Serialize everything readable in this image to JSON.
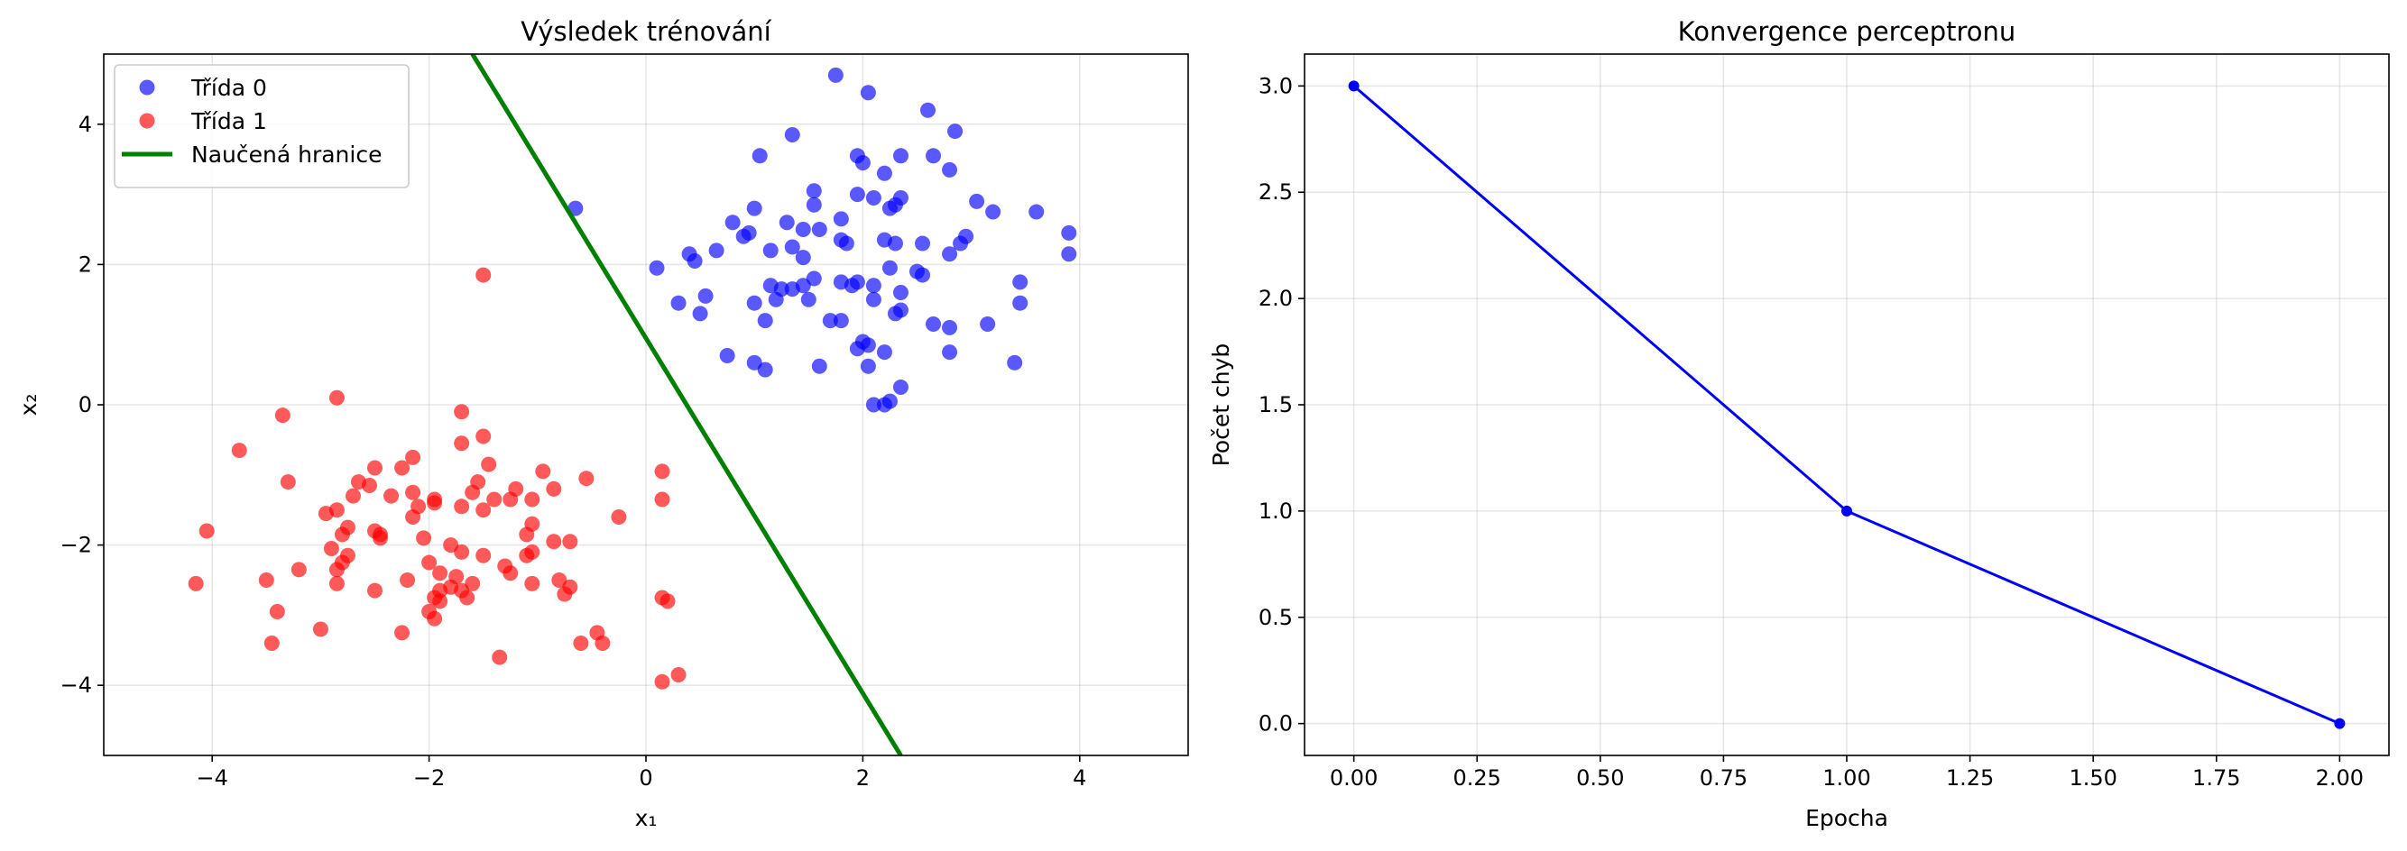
{
  "chart_data": [
    {
      "type": "scatter",
      "title": "Výsledek trénování",
      "xlabel": "x₁",
      "ylabel": "x₂",
      "xlim": [
        -5,
        5
      ],
      "ylim": [
        -5,
        5
      ],
      "xticks": [
        -4,
        -2,
        0,
        2,
        4
      ],
      "yticks": [
        -4,
        -2,
        0,
        2,
        4
      ],
      "xtick_labels": [
        "−4",
        "−2",
        "0",
        "2",
        "4"
      ],
      "ytick_labels": [
        "−4",
        "−2",
        "0",
        "2",
        "4"
      ],
      "grid": true,
      "legend_position": "top-left",
      "series": [
        {
          "name": "Třída 0",
          "kind": "scatter",
          "color": "#0000ff",
          "points": [
            [
              1.75,
              4.7
            ],
            [
              2.05,
              4.45
            ],
            [
              2.6,
              4.2
            ],
            [
              2.85,
              3.9
            ],
            [
              1.35,
              3.85
            ],
            [
              1.05,
              3.55
            ],
            [
              1.95,
              3.55
            ],
            [
              2.0,
              3.45
            ],
            [
              2.35,
              3.55
            ],
            [
              2.65,
              3.55
            ],
            [
              2.8,
              3.35
            ],
            [
              2.2,
              3.3
            ],
            [
              1.55,
              3.05
            ],
            [
              1.95,
              3.0
            ],
            [
              2.1,
              2.95
            ],
            [
              2.35,
              2.95
            ],
            [
              3.05,
              2.9
            ],
            [
              1.55,
              2.85
            ],
            [
              2.3,
              2.85
            ],
            [
              2.25,
              2.8
            ],
            [
              3.2,
              2.75
            ],
            [
              3.6,
              2.75
            ],
            [
              1.0,
              2.8
            ],
            [
              1.8,
              2.65
            ],
            [
              0.8,
              2.6
            ],
            [
              1.3,
              2.6
            ],
            [
              1.45,
              2.5
            ],
            [
              1.6,
              2.5
            ],
            [
              0.95,
              2.45
            ],
            [
              0.9,
              2.4
            ],
            [
              2.95,
              2.4
            ],
            [
              3.9,
              2.45
            ],
            [
              2.2,
              2.35
            ],
            [
              1.8,
              2.35
            ],
            [
              1.85,
              2.3
            ],
            [
              2.3,
              2.3
            ],
            [
              2.55,
              2.3
            ],
            [
              2.9,
              2.3
            ],
            [
              0.4,
              2.15
            ],
            [
              0.65,
              2.2
            ],
            [
              1.35,
              2.25
            ],
            [
              1.45,
              2.1
            ],
            [
              0.45,
              2.05
            ],
            [
              1.15,
              2.2
            ],
            [
              2.8,
              2.15
            ],
            [
              3.9,
              2.15
            ],
            [
              0.1,
              1.95
            ],
            [
              2.25,
              1.95
            ],
            [
              2.5,
              1.9
            ],
            [
              2.55,
              1.85
            ],
            [
              1.8,
              1.75
            ],
            [
              1.95,
              1.75
            ],
            [
              2.1,
              1.7
            ],
            [
              1.9,
              1.7
            ],
            [
              1.55,
              1.8
            ],
            [
              1.45,
              1.7
            ],
            [
              1.25,
              1.65
            ],
            [
              1.15,
              1.7
            ],
            [
              1.35,
              1.65
            ],
            [
              3.45,
              1.75
            ],
            [
              0.55,
              1.55
            ],
            [
              2.35,
              1.6
            ],
            [
              1.2,
              1.5
            ],
            [
              1.5,
              1.5
            ],
            [
              2.1,
              1.5
            ],
            [
              3.45,
              1.45
            ],
            [
              0.3,
              1.45
            ],
            [
              1.0,
              1.45
            ],
            [
              0.5,
              1.3
            ],
            [
              2.3,
              1.3
            ],
            [
              1.8,
              1.2
            ],
            [
              1.7,
              1.2
            ],
            [
              2.35,
              1.35
            ],
            [
              1.1,
              1.2
            ],
            [
              2.65,
              1.15
            ],
            [
              2.8,
              1.1
            ],
            [
              3.15,
              1.15
            ],
            [
              2.05,
              0.85
            ],
            [
              1.95,
              0.8
            ],
            [
              2.2,
              0.75
            ],
            [
              2.8,
              0.75
            ],
            [
              2.0,
              0.9
            ],
            [
              0.75,
              0.7
            ],
            [
              1.0,
              0.6
            ],
            [
              1.1,
              0.5
            ],
            [
              1.6,
              0.55
            ],
            [
              2.05,
              0.55
            ],
            [
              3.4,
              0.6
            ],
            [
              2.35,
              0.25
            ],
            [
              2.25,
              0.05
            ],
            [
              2.1,
              0.0
            ],
            [
              2.2,
              0.0
            ],
            [
              -0.65,
              2.8
            ]
          ]
        },
        {
          "name": "Třída 1",
          "kind": "scatter",
          "color": "#ff0000",
          "points": [
            [
              -1.5,
              1.85
            ],
            [
              -2.85,
              0.1
            ],
            [
              -3.35,
              -0.15
            ],
            [
              -1.7,
              -0.1
            ],
            [
              -1.5,
              -0.45
            ],
            [
              -3.75,
              -0.65
            ],
            [
              -1.7,
              -0.55
            ],
            [
              -2.15,
              -0.75
            ],
            [
              -2.25,
              -0.9
            ],
            [
              -1.45,
              -0.85
            ],
            [
              -2.5,
              -0.9
            ],
            [
              -0.95,
              -0.95
            ],
            [
              -0.55,
              -1.05
            ],
            [
              0.15,
              -0.95
            ],
            [
              -3.3,
              -1.1
            ],
            [
              -2.65,
              -1.1
            ],
            [
              -2.55,
              -1.15
            ],
            [
              -1.55,
              -1.1
            ],
            [
              -1.2,
              -1.2
            ],
            [
              -0.85,
              -1.2
            ],
            [
              -2.7,
              -1.3
            ],
            [
              -2.15,
              -1.25
            ],
            [
              -2.35,
              -1.3
            ],
            [
              -1.95,
              -1.35
            ],
            [
              -1.6,
              -1.25
            ],
            [
              -1.25,
              -1.35
            ],
            [
              -1.05,
              -1.35
            ],
            [
              0.15,
              -1.35
            ],
            [
              -1.4,
              -1.35
            ],
            [
              -2.1,
              -1.45
            ],
            [
              -1.95,
              -1.4
            ],
            [
              -1.7,
              -1.45
            ],
            [
              -1.5,
              -1.5
            ],
            [
              -2.95,
              -1.55
            ],
            [
              -2.85,
              -1.5
            ],
            [
              -2.15,
              -1.6
            ],
            [
              -0.25,
              -1.6
            ],
            [
              -1.05,
              -1.7
            ],
            [
              -2.75,
              -1.75
            ],
            [
              -2.5,
              -1.8
            ],
            [
              -2.45,
              -1.85
            ],
            [
              -2.8,
              -1.85
            ],
            [
              -1.1,
              -1.85
            ],
            [
              -2.45,
              -1.9
            ],
            [
              -2.05,
              -1.9
            ],
            [
              -1.8,
              -2.0
            ],
            [
              -0.85,
              -1.95
            ],
            [
              -0.7,
              -1.95
            ],
            [
              -4.05,
              -1.8
            ],
            [
              -2.9,
              -2.05
            ],
            [
              -2.75,
              -2.15
            ],
            [
              -1.7,
              -2.1
            ],
            [
              -1.1,
              -2.15
            ],
            [
              -1.05,
              -2.1
            ],
            [
              -1.5,
              -2.15
            ],
            [
              -2.8,
              -2.25
            ],
            [
              -2.0,
              -2.25
            ],
            [
              -1.3,
              -2.3
            ],
            [
              -2.85,
              -2.35
            ],
            [
              -3.2,
              -2.35
            ],
            [
              -1.9,
              -2.4
            ],
            [
              -2.2,
              -2.5
            ],
            [
              -1.25,
              -2.4
            ],
            [
              -1.75,
              -2.45
            ],
            [
              -1.6,
              -2.55
            ],
            [
              -1.05,
              -2.55
            ],
            [
              -0.8,
              -2.5
            ],
            [
              -3.5,
              -2.5
            ],
            [
              -4.15,
              -2.55
            ],
            [
              -2.85,
              -2.55
            ],
            [
              -1.8,
              -2.6
            ],
            [
              -1.7,
              -2.65
            ],
            [
              -1.9,
              -2.65
            ],
            [
              -2.5,
              -2.65
            ],
            [
              -0.7,
              -2.6
            ],
            [
              -0.75,
              -2.7
            ],
            [
              -1.95,
              -2.75
            ],
            [
              -1.65,
              -2.75
            ],
            [
              -1.9,
              -2.8
            ],
            [
              0.15,
              -2.75
            ],
            [
              0.2,
              -2.8
            ],
            [
              -2.0,
              -2.95
            ],
            [
              -3.4,
              -2.95
            ],
            [
              -1.95,
              -3.05
            ],
            [
              -3.0,
              -3.2
            ],
            [
              -2.25,
              -3.25
            ],
            [
              -0.45,
              -3.25
            ],
            [
              -3.45,
              -3.4
            ],
            [
              -0.6,
              -3.4
            ],
            [
              -0.4,
              -3.4
            ],
            [
              -1.35,
              -3.6
            ],
            [
              0.3,
              -3.85
            ],
            [
              0.15,
              -3.95
            ]
          ]
        },
        {
          "name": "Naučená hranice",
          "kind": "line",
          "color": "#008000",
          "x": [
            -1.6,
            2.35
          ],
          "y": [
            5.0,
            -5.0
          ]
        }
      ]
    },
    {
      "type": "line",
      "title": "Konvergence perceptronu",
      "xlabel": "Epocha",
      "ylabel": "Počet chyb",
      "xlim": [
        -0.1,
        2.1
      ],
      "ylim": [
        -0.15,
        3.15
      ],
      "xticks": [
        0.0,
        0.25,
        0.5,
        0.75,
        1.0,
        1.25,
        1.5,
        1.75,
        2.0
      ],
      "yticks": [
        0.0,
        0.5,
        1.0,
        1.5,
        2.0,
        2.5,
        3.0
      ],
      "xtick_labels": [
        "0.00",
        "0.25",
        "0.50",
        "0.75",
        "1.00",
        "1.25",
        "1.50",
        "1.75",
        "2.00"
      ],
      "ytick_labels": [
        "0.0",
        "0.5",
        "1.0",
        "1.5",
        "2.0",
        "2.5",
        "3.0"
      ],
      "grid": true,
      "series": [
        {
          "kind": "line-markers",
          "color": "#0000ff",
          "x": [
            0,
            1,
            2
          ],
          "y": [
            3,
            1,
            0
          ]
        }
      ]
    }
  ]
}
